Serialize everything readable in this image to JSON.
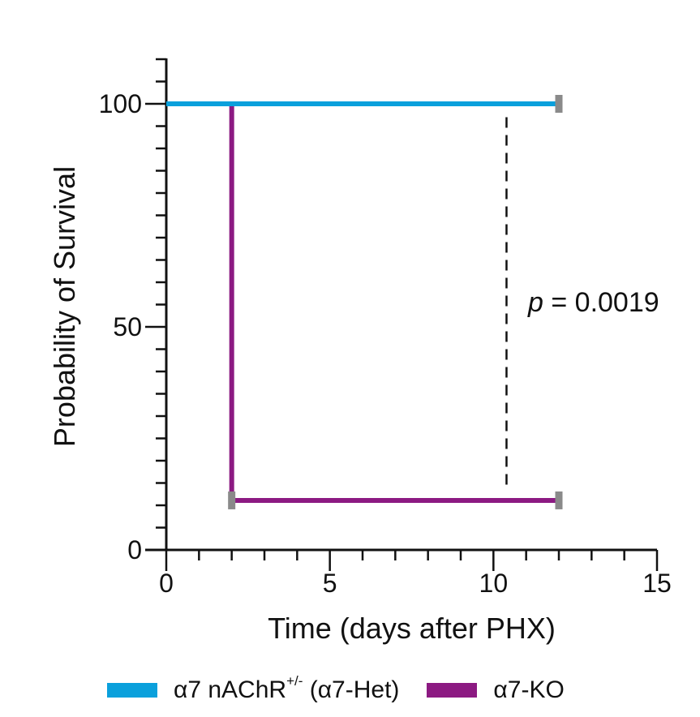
{
  "chart_data": {
    "type": "line",
    "subtype": "kaplan-meier-survival",
    "title": "",
    "xlabel": "Time (days after PHX)",
    "ylabel": "Probability of Survival",
    "xlim": [
      0,
      15
    ],
    "ylim": [
      0,
      100
    ],
    "x_ticks": [
      0,
      5,
      10,
      15
    ],
    "y_ticks": [
      0,
      50,
      100
    ],
    "x_minor_step": 1,
    "y_minor_step": 5,
    "grid": false,
    "legend_position": "bottom",
    "series": [
      {
        "name": "α7 nAChR+/- (α7-Het)",
        "name_main": "α7 nAChR",
        "name_sup": "+/-",
        "name_suffix": " (α7-Het)",
        "color": "#0aa0dc",
        "steps": [
          {
            "x": 0,
            "y": 100
          },
          {
            "x": 12,
            "y": 100
          }
        ],
        "censor_marks": [
          {
            "x": 12,
            "y": 100
          }
        ]
      },
      {
        "name": "α7-KO",
        "color": "#8c1a82",
        "steps": [
          {
            "x": 0,
            "y": 100
          },
          {
            "x": 2,
            "y": 100
          },
          {
            "x": 2,
            "y": 11.1
          },
          {
            "x": 12,
            "y": 11.1
          }
        ],
        "censor_marks": [
          {
            "x": 2,
            "y": 11.1
          },
          {
            "x": 12,
            "y": 11.1
          }
        ]
      }
    ],
    "censor_color": "#8a8a8a",
    "annotations": [
      {
        "text_italic": "p",
        "text_rest": " = 0.0019",
        "text": "p = 0.0019",
        "x": 11,
        "y": 55
      },
      {
        "type": "dashed-line",
        "x": 10.4,
        "y_from": 14,
        "y_to": 97
      }
    ]
  }
}
